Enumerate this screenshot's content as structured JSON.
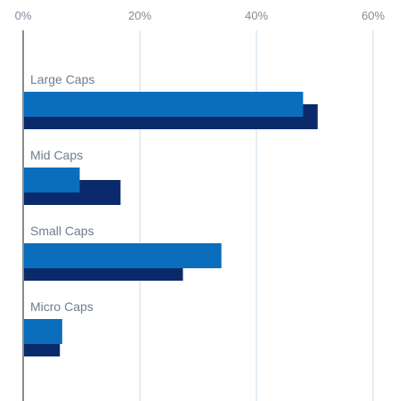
{
  "chart_data": {
    "type": "bar",
    "orientation": "horizontal",
    "title": "",
    "xlabel": "",
    "ylabel": "",
    "xlim": [
      0,
      60
    ],
    "x_ticks": [
      0,
      20,
      40,
      60
    ],
    "x_tick_labels": [
      "0%",
      "20%",
      "40%",
      "60%"
    ],
    "x_axis_position": "top",
    "grid": "vertical",
    "legend": "none",
    "categories": [
      "Large Caps",
      "Mid Caps",
      "Small Caps",
      "Micro Caps"
    ],
    "series": [
      {
        "color": "#0a6ebd",
        "values": [
          48,
          9.7,
          34,
          6.7
        ]
      },
      {
        "color": "#0b2a6b",
        "values": [
          50.5,
          16.7,
          27.4,
          6.3
        ]
      }
    ]
  }
}
